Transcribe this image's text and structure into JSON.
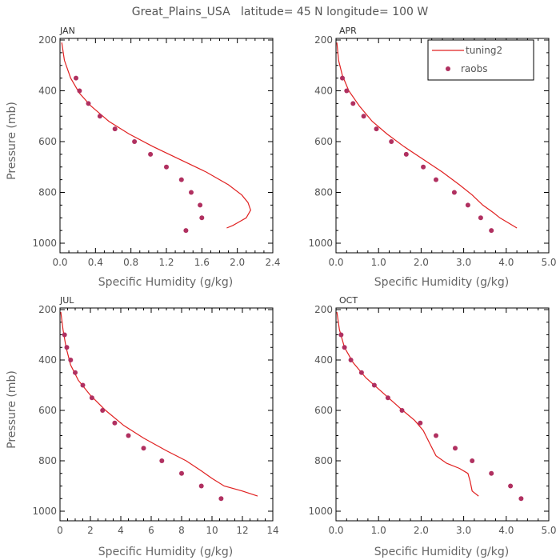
{
  "title": "Great_Plains_USA   latitude= 45 N longitude= 100 W",
  "legend": {
    "line_label": "tuning2",
    "dots_label": "raobs",
    "line_color": "#e02020",
    "dot_color": "#b03060"
  },
  "chart_data": [
    {
      "type": "line",
      "panel_label": "JAN",
      "xlabel": "Specific Humidity (g/kg)",
      "ylabel": "Pressure (mb)",
      "xlim": [
        0,
        2.4
      ],
      "ylim": [
        200,
        1000
      ],
      "y_inverted": true,
      "xticks": [
        0,
        0.4,
        0.8,
        1.2,
        1.6,
        2.0,
        2.4
      ],
      "xtick_labels": [
        "0.0",
        "0.4",
        "0.8",
        "1.2",
        "1.6",
        "2.0",
        "2.4"
      ],
      "yticks": [
        200,
        400,
        600,
        800,
        1000
      ],
      "ytick_labels": [
        "200",
        "400",
        "600",
        "800",
        "1000"
      ],
      "series": [
        {
          "name": "tuning2",
          "kind": "line",
          "x": [
            0.02,
            0.05,
            0.12,
            0.22,
            0.35,
            0.55,
            0.78,
            1.05,
            1.35,
            1.65,
            1.9,
            2.05,
            2.12,
            2.15,
            2.1,
            2.0,
            1.95,
            1.88
          ],
          "y": [
            210,
            280,
            350,
            410,
            460,
            520,
            570,
            620,
            670,
            720,
            770,
            810,
            840,
            870,
            900,
            920,
            930,
            940
          ]
        },
        {
          "name": "raobs",
          "kind": "dots",
          "x": [
            0.18,
            0.22,
            0.32,
            0.45,
            0.62,
            0.84,
            1.02,
            1.2,
            1.37,
            1.48,
            1.58,
            1.6,
            1.42
          ],
          "y": [
            350,
            400,
            450,
            500,
            550,
            600,
            650,
            700,
            750,
            800,
            850,
            900,
            950
          ]
        }
      ]
    },
    {
      "type": "line",
      "panel_label": "APR",
      "xlabel": "Specific Humidity (g/kg)",
      "ylabel": "",
      "xlim": [
        0,
        5.0
      ],
      "ylim": [
        200,
        1000
      ],
      "y_inverted": true,
      "xticks": [
        0,
        1,
        2,
        3,
        4,
        5
      ],
      "xtick_labels": [
        "0.0",
        "1.0",
        "2.0",
        "3.0",
        "4.0",
        "5.0"
      ],
      "yticks": [
        200,
        400,
        600,
        800,
        1000
      ],
      "ytick_labels": [
        "200",
        "400",
        "600",
        "800",
        "1000"
      ],
      "series": [
        {
          "name": "tuning2",
          "kind": "line",
          "x": [
            0.02,
            0.06,
            0.15,
            0.3,
            0.55,
            0.85,
            1.2,
            1.6,
            2.05,
            2.5,
            2.9,
            3.2,
            3.45,
            3.7,
            3.85,
            4.05,
            4.25
          ],
          "y": [
            210,
            280,
            340,
            400,
            460,
            520,
            570,
            620,
            670,
            720,
            770,
            810,
            850,
            880,
            900,
            920,
            940
          ]
        },
        {
          "name": "raobs",
          "kind": "dots",
          "x": [
            0.15,
            0.25,
            0.4,
            0.65,
            0.95,
            1.3,
            1.65,
            2.05,
            2.35,
            2.78,
            3.1,
            3.4,
            3.65
          ],
          "y": [
            350,
            400,
            450,
            500,
            550,
            600,
            650,
            700,
            750,
            800,
            850,
            900,
            950
          ]
        }
      ]
    },
    {
      "type": "line",
      "panel_label": "JUL",
      "xlabel": "Specific Humidity (g/kg)",
      "ylabel": "Pressure (mb)",
      "xlim": [
        0,
        14
      ],
      "ylim": [
        200,
        1000
      ],
      "y_inverted": true,
      "xticks": [
        0,
        2,
        4,
        6,
        8,
        10,
        12,
        14
      ],
      "xtick_labels": [
        "0",
        "2",
        "4",
        "6",
        "8",
        "10",
        "12",
        "14"
      ],
      "yticks": [
        200,
        400,
        600,
        800,
        1000
      ],
      "ytick_labels": [
        "200",
        "400",
        "600",
        "800",
        "1000"
      ],
      "series": [
        {
          "name": "tuning2",
          "kind": "line",
          "x": [
            0.05,
            0.2,
            0.4,
            0.7,
            1.2,
            2.0,
            3.0,
            4.2,
            5.5,
            7.0,
            8.3,
            9.3,
            10.0,
            10.8,
            12.0,
            13.0
          ],
          "y": [
            210,
            280,
            350,
            420,
            480,
            540,
            600,
            660,
            710,
            760,
            800,
            840,
            870,
            900,
            920,
            940
          ]
        },
        {
          "name": "raobs",
          "kind": "dots",
          "x": [
            0.3,
            0.45,
            0.7,
            1.0,
            1.5,
            2.1,
            2.8,
            3.6,
            4.5,
            5.5,
            6.7,
            8.0,
            9.3,
            10.6
          ],
          "y": [
            300,
            350,
            400,
            450,
            500,
            550,
            600,
            650,
            700,
            750,
            800,
            850,
            900,
            950
          ]
        }
      ]
    },
    {
      "type": "line",
      "panel_label": "OCT",
      "xlabel": "Specific Humidity (g/kg)",
      "ylabel": "",
      "xlim": [
        0,
        5.0
      ],
      "ylim": [
        200,
        1000
      ],
      "y_inverted": true,
      "xticks": [
        0,
        1,
        2,
        3,
        4,
        5
      ],
      "xtick_labels": [
        "0.0",
        "1.0",
        "2.0",
        "3.0",
        "4.0",
        "5.0"
      ],
      "yticks": [
        200,
        400,
        600,
        800,
        1000
      ],
      "ytick_labels": [
        "200",
        "400",
        "600",
        "800",
        "1000"
      ],
      "series": [
        {
          "name": "tuning2",
          "kind": "line",
          "x": [
            0.02,
            0.08,
            0.2,
            0.4,
            0.7,
            1.1,
            1.5,
            1.85,
            2.05,
            2.2,
            2.35,
            2.6,
            2.9,
            3.1,
            3.15,
            3.2,
            3.35
          ],
          "y": [
            210,
            280,
            350,
            410,
            470,
            530,
            590,
            640,
            680,
            730,
            780,
            810,
            830,
            850,
            880,
            920,
            940
          ]
        },
        {
          "name": "raobs",
          "kind": "dots",
          "x": [
            0.12,
            0.2,
            0.35,
            0.6,
            0.9,
            1.22,
            1.55,
            1.98,
            2.35,
            2.8,
            3.2,
            3.65,
            4.1,
            4.35
          ],
          "y": [
            300,
            350,
            400,
            450,
            500,
            550,
            600,
            650,
            700,
            750,
            800,
            850,
            900,
            950
          ]
        }
      ]
    }
  ]
}
